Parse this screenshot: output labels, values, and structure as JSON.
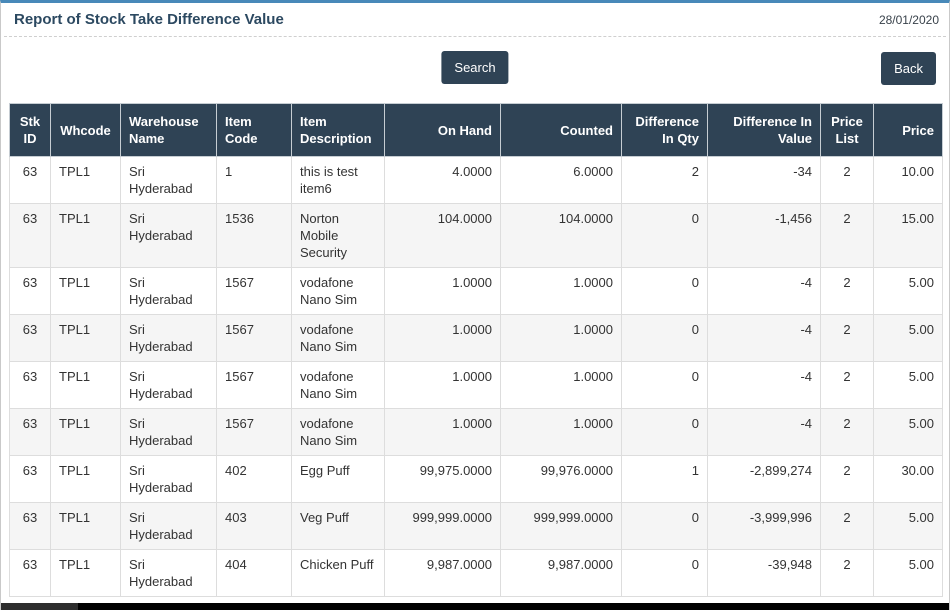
{
  "page": {
    "title": "Report of Stock Take Difference Value",
    "date": "28/01/2020"
  },
  "toolbar": {
    "search_label": "Search",
    "back_label": "Back"
  },
  "colors": {
    "header_bg": "#2f4355",
    "accent_top_bar": "#4889b9",
    "title_text": "#2c4961",
    "row_stripe": "#f5f5f5",
    "table_border": "#dddddd",
    "scrollbar": "#000000"
  },
  "table": {
    "columns": [
      {
        "key": "stk_id",
        "label": "Stk ID"
      },
      {
        "key": "whcode",
        "label": "Whcode"
      },
      {
        "key": "warehouse_name",
        "label": "Warehouse Name"
      },
      {
        "key": "item_code",
        "label": "Item Code"
      },
      {
        "key": "item_description",
        "label": "Item Description"
      },
      {
        "key": "on_hand",
        "label": "On Hand"
      },
      {
        "key": "counted",
        "label": "Counted"
      },
      {
        "key": "difference_in_qty",
        "label": "Difference In Qty"
      },
      {
        "key": "difference_in_value",
        "label": "Difference In Value"
      },
      {
        "key": "price_list",
        "label": "Price List"
      },
      {
        "key": "price",
        "label": "Price"
      }
    ],
    "rows": [
      {
        "stk_id": "63",
        "whcode": "TPL1",
        "warehouse_name": "Sri Hyderabad",
        "item_code": "1",
        "item_description": "this is test item6",
        "on_hand": "4.0000",
        "counted": "6.0000",
        "difference_in_qty": "2",
        "difference_in_value": "-34",
        "price_list": "2",
        "price": "10.00"
      },
      {
        "stk_id": "63",
        "whcode": "TPL1",
        "warehouse_name": "Sri Hyderabad",
        "item_code": "1536",
        "item_description": "Norton Mobile Security",
        "on_hand": "104.0000",
        "counted": "104.0000",
        "difference_in_qty": "0",
        "difference_in_value": "-1,456",
        "price_list": "2",
        "price": "15.00"
      },
      {
        "stk_id": "63",
        "whcode": "TPL1",
        "warehouse_name": "Sri Hyderabad",
        "item_code": "1567",
        "item_description": "vodafone Nano Sim",
        "on_hand": "1.0000",
        "counted": "1.0000",
        "difference_in_qty": "0",
        "difference_in_value": "-4",
        "price_list": "2",
        "price": "5.00"
      },
      {
        "stk_id": "63",
        "whcode": "TPL1",
        "warehouse_name": "Sri Hyderabad",
        "item_code": "1567",
        "item_description": "vodafone Nano Sim",
        "on_hand": "1.0000",
        "counted": "1.0000",
        "difference_in_qty": "0",
        "difference_in_value": "-4",
        "price_list": "2",
        "price": "5.00"
      },
      {
        "stk_id": "63",
        "whcode": "TPL1",
        "warehouse_name": "Sri Hyderabad",
        "item_code": "1567",
        "item_description": "vodafone Nano Sim",
        "on_hand": "1.0000",
        "counted": "1.0000",
        "difference_in_qty": "0",
        "difference_in_value": "-4",
        "price_list": "2",
        "price": "5.00"
      },
      {
        "stk_id": "63",
        "whcode": "TPL1",
        "warehouse_name": "Sri Hyderabad",
        "item_code": "1567",
        "item_description": "vodafone Nano Sim",
        "on_hand": "1.0000",
        "counted": "1.0000",
        "difference_in_qty": "0",
        "difference_in_value": "-4",
        "price_list": "2",
        "price": "5.00"
      },
      {
        "stk_id": "63",
        "whcode": "TPL1",
        "warehouse_name": "Sri Hyderabad",
        "item_code": "402",
        "item_description": "Egg Puff",
        "on_hand": "99,975.0000",
        "counted": "99,976.0000",
        "difference_in_qty": "1",
        "difference_in_value": "-2,899,274",
        "price_list": "2",
        "price": "30.00"
      },
      {
        "stk_id": "63",
        "whcode": "TPL1",
        "warehouse_name": "Sri Hyderabad",
        "item_code": "403",
        "item_description": "Veg Puff",
        "on_hand": "999,999.0000",
        "counted": "999,999.0000",
        "difference_in_qty": "0",
        "difference_in_value": "-3,999,996",
        "price_list": "2",
        "price": "5.00"
      },
      {
        "stk_id": "63",
        "whcode": "TPL1",
        "warehouse_name": "Sri Hyderabad",
        "item_code": "404",
        "item_description": "Chicken Puff",
        "on_hand": "9,987.0000",
        "counted": "9,987.0000",
        "difference_in_qty": "0",
        "difference_in_value": "-39,948",
        "price_list": "2",
        "price": "5.00"
      }
    ]
  }
}
